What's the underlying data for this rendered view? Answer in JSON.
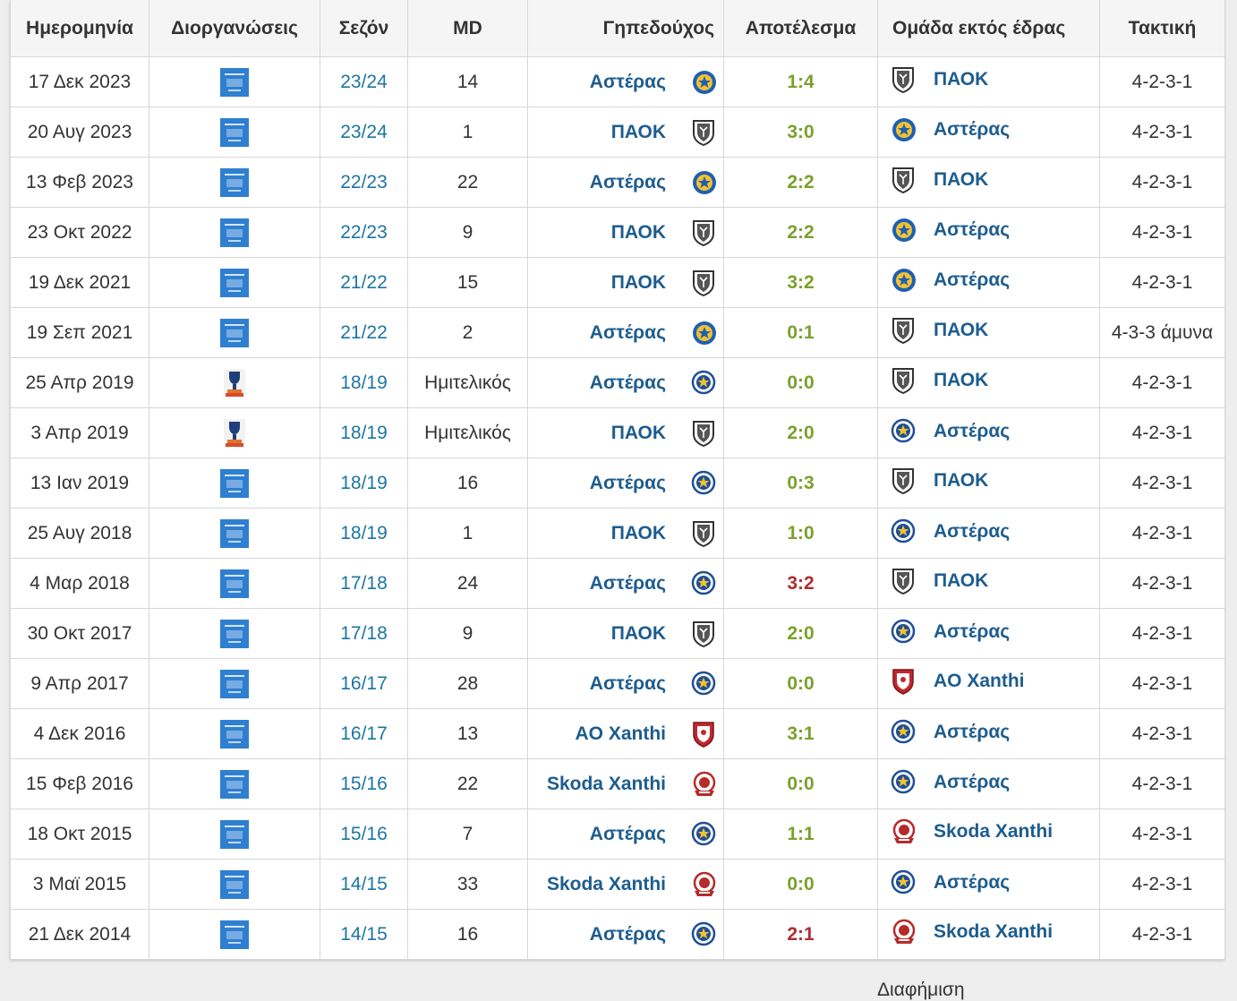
{
  "headers": {
    "date": "Ημερομηνία",
    "competition": "Διοργανώσεις",
    "season": "Σεζόν",
    "md": "MD",
    "home": "Γηπεδούχος",
    "result": "Αποτέλεσμα",
    "away": "Ομάδα εκτός έδρας",
    "tactic": "Τακτική"
  },
  "colors": {
    "win": "#7ba02b",
    "loss": "#b02d2d",
    "team_link": "#1d5c8f",
    "season_link": "#1d75a3"
  },
  "rows": [
    {
      "date": "17 Δεκ 2023",
      "comp": "league-icon",
      "season": "23/24",
      "md": "14",
      "home": "Αστέρας",
      "home_logo": "asteras-new-logo-icon",
      "result": "1:4",
      "result_type": "win",
      "away": "ΠΑΟΚ",
      "away_logo": "paok-logo-icon",
      "tactic": "4-2-3-1"
    },
    {
      "date": "20 Αυγ 2023",
      "comp": "league-icon",
      "season": "23/24",
      "md": "1",
      "home": "ΠΑΟΚ",
      "home_logo": "paok-logo-icon",
      "result": "3:0",
      "result_type": "win",
      "away": "Αστέρας",
      "away_logo": "asteras-new-logo-icon",
      "tactic": "4-2-3-1"
    },
    {
      "date": "13 Φεβ 2023",
      "comp": "league-icon",
      "season": "22/23",
      "md": "22",
      "home": "Αστέρας",
      "home_logo": "asteras-new-logo-icon",
      "result": "2:2",
      "result_type": "win",
      "away": "ΠΑΟΚ",
      "away_logo": "paok-logo-icon",
      "tactic": "4-2-3-1"
    },
    {
      "date": "23 Οκτ 2022",
      "comp": "league-icon",
      "season": "22/23",
      "md": "9",
      "home": "ΠΑΟΚ",
      "home_logo": "paok-logo-icon",
      "result": "2:2",
      "result_type": "win",
      "away": "Αστέρας",
      "away_logo": "asteras-new-logo-icon",
      "tactic": "4-2-3-1"
    },
    {
      "date": "19 Δεκ 2021",
      "comp": "league-icon",
      "season": "21/22",
      "md": "15",
      "home": "ΠΑΟΚ",
      "home_logo": "paok-logo-icon",
      "result": "3:2",
      "result_type": "win",
      "away": "Αστέρας",
      "away_logo": "asteras-new-logo-icon",
      "tactic": "4-2-3-1"
    },
    {
      "date": "19 Σεπ 2021",
      "comp": "league-icon",
      "season": "21/22",
      "md": "2",
      "home": "Αστέρας",
      "home_logo": "asteras-new-logo-icon",
      "result": "0:1",
      "result_type": "win",
      "away": "ΠΑΟΚ",
      "away_logo": "paok-logo-icon",
      "tactic": "4-3-3 άμυνα"
    },
    {
      "date": "25 Απρ 2019",
      "comp": "cup-icon",
      "season": "18/19",
      "md": "Ημιτελικός",
      "home": "Αστέρας",
      "home_logo": "asteras-old-logo-icon",
      "result": "0:0",
      "result_type": "win",
      "away": "ΠΑΟΚ",
      "away_logo": "paok-logo-icon",
      "tactic": "4-2-3-1"
    },
    {
      "date": "3 Απρ 2019",
      "comp": "cup-icon",
      "season": "18/19",
      "md": "Ημιτελικός",
      "home": "ΠΑΟΚ",
      "home_logo": "paok-logo-icon",
      "result": "2:0",
      "result_type": "win",
      "away": "Αστέρας",
      "away_logo": "asteras-old-logo-icon",
      "tactic": "4-2-3-1"
    },
    {
      "date": "13 Ιαν 2019",
      "comp": "league-icon",
      "season": "18/19",
      "md": "16",
      "home": "Αστέρας",
      "home_logo": "asteras-old-logo-icon",
      "result": "0:3",
      "result_type": "win",
      "away": "ΠΑΟΚ",
      "away_logo": "paok-logo-icon",
      "tactic": "4-2-3-1"
    },
    {
      "date": "25 Αυγ 2018",
      "comp": "league-icon",
      "season": "18/19",
      "md": "1",
      "home": "ΠΑΟΚ",
      "home_logo": "paok-logo-icon",
      "result": "1:0",
      "result_type": "win",
      "away": "Αστέρας",
      "away_logo": "asteras-old-logo-icon",
      "tactic": "4-2-3-1"
    },
    {
      "date": "4 Μαρ 2018",
      "comp": "league-icon",
      "season": "17/18",
      "md": "24",
      "home": "Αστέρας",
      "home_logo": "asteras-old-logo-icon",
      "result": "3:2",
      "result_type": "loss",
      "away": "ΠΑΟΚ",
      "away_logo": "paok-logo-icon",
      "tactic": "4-2-3-1"
    },
    {
      "date": "30 Οκτ 2017",
      "comp": "league-icon",
      "season": "17/18",
      "md": "9",
      "home": "ΠΑΟΚ",
      "home_logo": "paok-logo-icon",
      "result": "2:0",
      "result_type": "win",
      "away": "Αστέρας",
      "away_logo": "asteras-old-logo-icon",
      "tactic": "4-2-3-1"
    },
    {
      "date": "9 Απρ 2017",
      "comp": "league-icon",
      "season": "16/17",
      "md": "28",
      "home": "Αστέρας",
      "home_logo": "asteras-old-logo-icon",
      "result": "0:0",
      "result_type": "win",
      "away": "AO Xanthi",
      "away_logo": "xanthi-logo-icon",
      "tactic": "4-2-3-1"
    },
    {
      "date": "4 Δεκ 2016",
      "comp": "league-icon",
      "season": "16/17",
      "md": "13",
      "home": "AO Xanthi",
      "home_logo": "xanthi-logo-icon",
      "result": "3:1",
      "result_type": "win",
      "away": "Αστέρας",
      "away_logo": "asteras-old-logo-icon",
      "tactic": "4-2-3-1"
    },
    {
      "date": "15 Φεβ 2016",
      "comp": "league-icon",
      "season": "15/16",
      "md": "22",
      "home": "Skoda Xanthi",
      "home_logo": "skoda-xanthi-logo-icon",
      "result": "0:0",
      "result_type": "win",
      "away": "Αστέρας",
      "away_logo": "asteras-old-logo-icon",
      "tactic": "4-2-3-1"
    },
    {
      "date": "18 Οκτ 2015",
      "comp": "league-icon",
      "season": "15/16",
      "md": "7",
      "home": "Αστέρας",
      "home_logo": "asteras-old-logo-icon",
      "result": "1:1",
      "result_type": "win",
      "away": "Skoda Xanthi",
      "away_logo": "skoda-xanthi-logo-icon",
      "tactic": "4-2-3-1"
    },
    {
      "date": "3 Μαϊ 2015",
      "comp": "league-icon",
      "season": "14/15",
      "md": "33",
      "home": "Skoda Xanthi",
      "home_logo": "skoda-xanthi-logo-icon",
      "result": "0:0",
      "result_type": "win",
      "away": "Αστέρας",
      "away_logo": "asteras-old-logo-icon",
      "tactic": "4-2-3-1"
    },
    {
      "date": "21 Δεκ 2014",
      "comp": "league-icon",
      "season": "14/15",
      "md": "16",
      "home": "Αστέρας",
      "home_logo": "asteras-old-logo-icon",
      "result": "2:1",
      "result_type": "loss",
      "away": "Skoda Xanthi",
      "away_logo": "skoda-xanthi-logo-icon",
      "tactic": "4-2-3-1"
    }
  ],
  "footer": {
    "ad_label": "Διαφήμιση"
  }
}
